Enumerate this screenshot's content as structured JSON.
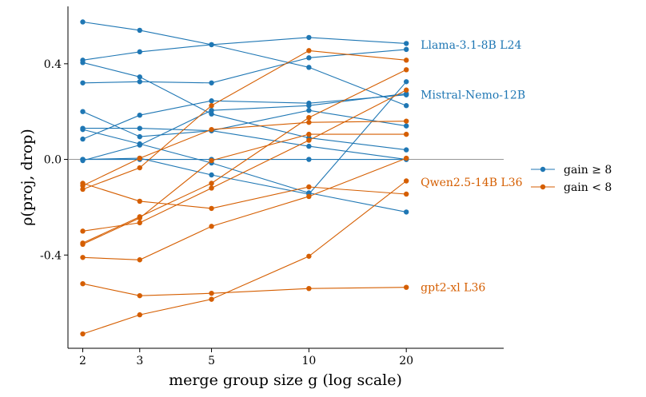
{
  "chart_data": {
    "type": "line",
    "xlabel": "merge group size g (log scale)",
    "ylabel": "ρ(proj, drop)",
    "x": [
      2,
      3,
      5,
      10,
      20
    ],
    "x_tick_labels": [
      "2",
      "3",
      "5",
      "10",
      "20"
    ],
    "x_scale": "log",
    "xlim": [
      1.8,
      40
    ],
    "ylim": [
      -0.79,
      0.64
    ],
    "y_ticks": [
      -0.4,
      0.0,
      0.4
    ],
    "y_tick_labels": [
      "-0.4",
      "0.0",
      "0.4"
    ],
    "reference_line_y": 0,
    "grid": false,
    "legend": {
      "placement": "right",
      "entries": [
        {
          "label": "gain ≥ 8",
          "color": "#1f77b4"
        },
        {
          "label": "gain < 8",
          "color": "#d55e00"
        }
      ]
    },
    "colors": {
      "high": "#1f77b4",
      "low": "#d55e00"
    },
    "annotations": [
      {
        "text": "Llama-3.1-8B L24",
        "x": 20,
        "y": 0.48,
        "group": "high"
      },
      {
        "text": "Mistral-Nemo-12B",
        "x": 20,
        "y": 0.27,
        "group": "high"
      },
      {
        "text": "Qwen2.5-14B L36",
        "x": 20,
        "y": -0.095,
        "group": "low"
      },
      {
        "text": "gpt2-xl L36",
        "x": 20,
        "y": -0.535,
        "group": "low"
      }
    ],
    "series": [
      {
        "group": "high",
        "values": [
          0.575,
          0.54,
          0.48,
          0.385,
          0.225
        ]
      },
      {
        "group": "high",
        "values": [
          0.415,
          0.45,
          0.48,
          0.51,
          0.485
        ]
      },
      {
        "group": "high",
        "values": [
          0.405,
          0.345,
          0.19,
          0.09,
          0.04
        ]
      },
      {
        "group": "high",
        "values": [
          0.32,
          0.325,
          0.32,
          0.425,
          0.46
        ]
      },
      {
        "group": "high",
        "values": [
          0.2,
          0.095,
          0.12,
          0.205,
          0.14
        ]
      },
      {
        "group": "high",
        "values": [
          0.13,
          0.13,
          0.12,
          0.055,
          0.0
        ]
      },
      {
        "group": "high",
        "values": [
          0.125,
          0.065,
          -0.015,
          -0.14,
          -0.22
        ]
      },
      {
        "group": "high",
        "values": [
          0.085,
          0.185,
          0.245,
          0.235,
          0.27
        ]
      },
      {
        "group": "high",
        "values": [
          0.0,
          0.0,
          0.0,
          0.0,
          0.0
        ]
      },
      {
        "group": "high",
        "values": [
          -0.005,
          0.06,
          0.205,
          0.225,
          0.275
        ]
      },
      {
        "group": "high",
        "values": [
          0.0,
          0.005,
          -0.065,
          -0.145,
          0.325
        ]
      },
      {
        "group": "low",
        "values": [
          -0.1,
          -0.175,
          -0.205,
          -0.115,
          -0.145
        ]
      },
      {
        "group": "low",
        "values": [
          -0.125,
          -0.035,
          0.225,
          0.455,
          0.415
        ]
      },
      {
        "group": "low",
        "values": [
          -0.11,
          0.005,
          0.125,
          0.155,
          0.16
        ]
      },
      {
        "group": "low",
        "values": [
          -0.3,
          -0.265,
          -0.12,
          0.08,
          0.29
        ]
      },
      {
        "group": "low",
        "values": [
          -0.35,
          -0.24,
          -0.1,
          0.175,
          0.375
        ]
      },
      {
        "group": "low",
        "values": [
          -0.355,
          -0.245,
          -0.005,
          0.105,
          0.105
        ]
      },
      {
        "group": "low",
        "values": [
          -0.41,
          -0.42,
          -0.28,
          -0.155,
          0.005
        ]
      },
      {
        "group": "low",
        "values": [
          -0.52,
          -0.57,
          -0.56,
          -0.54,
          -0.535
        ]
      },
      {
        "group": "low",
        "values": [
          -0.73,
          -0.65,
          -0.585,
          -0.405,
          -0.09
        ]
      }
    ]
  }
}
